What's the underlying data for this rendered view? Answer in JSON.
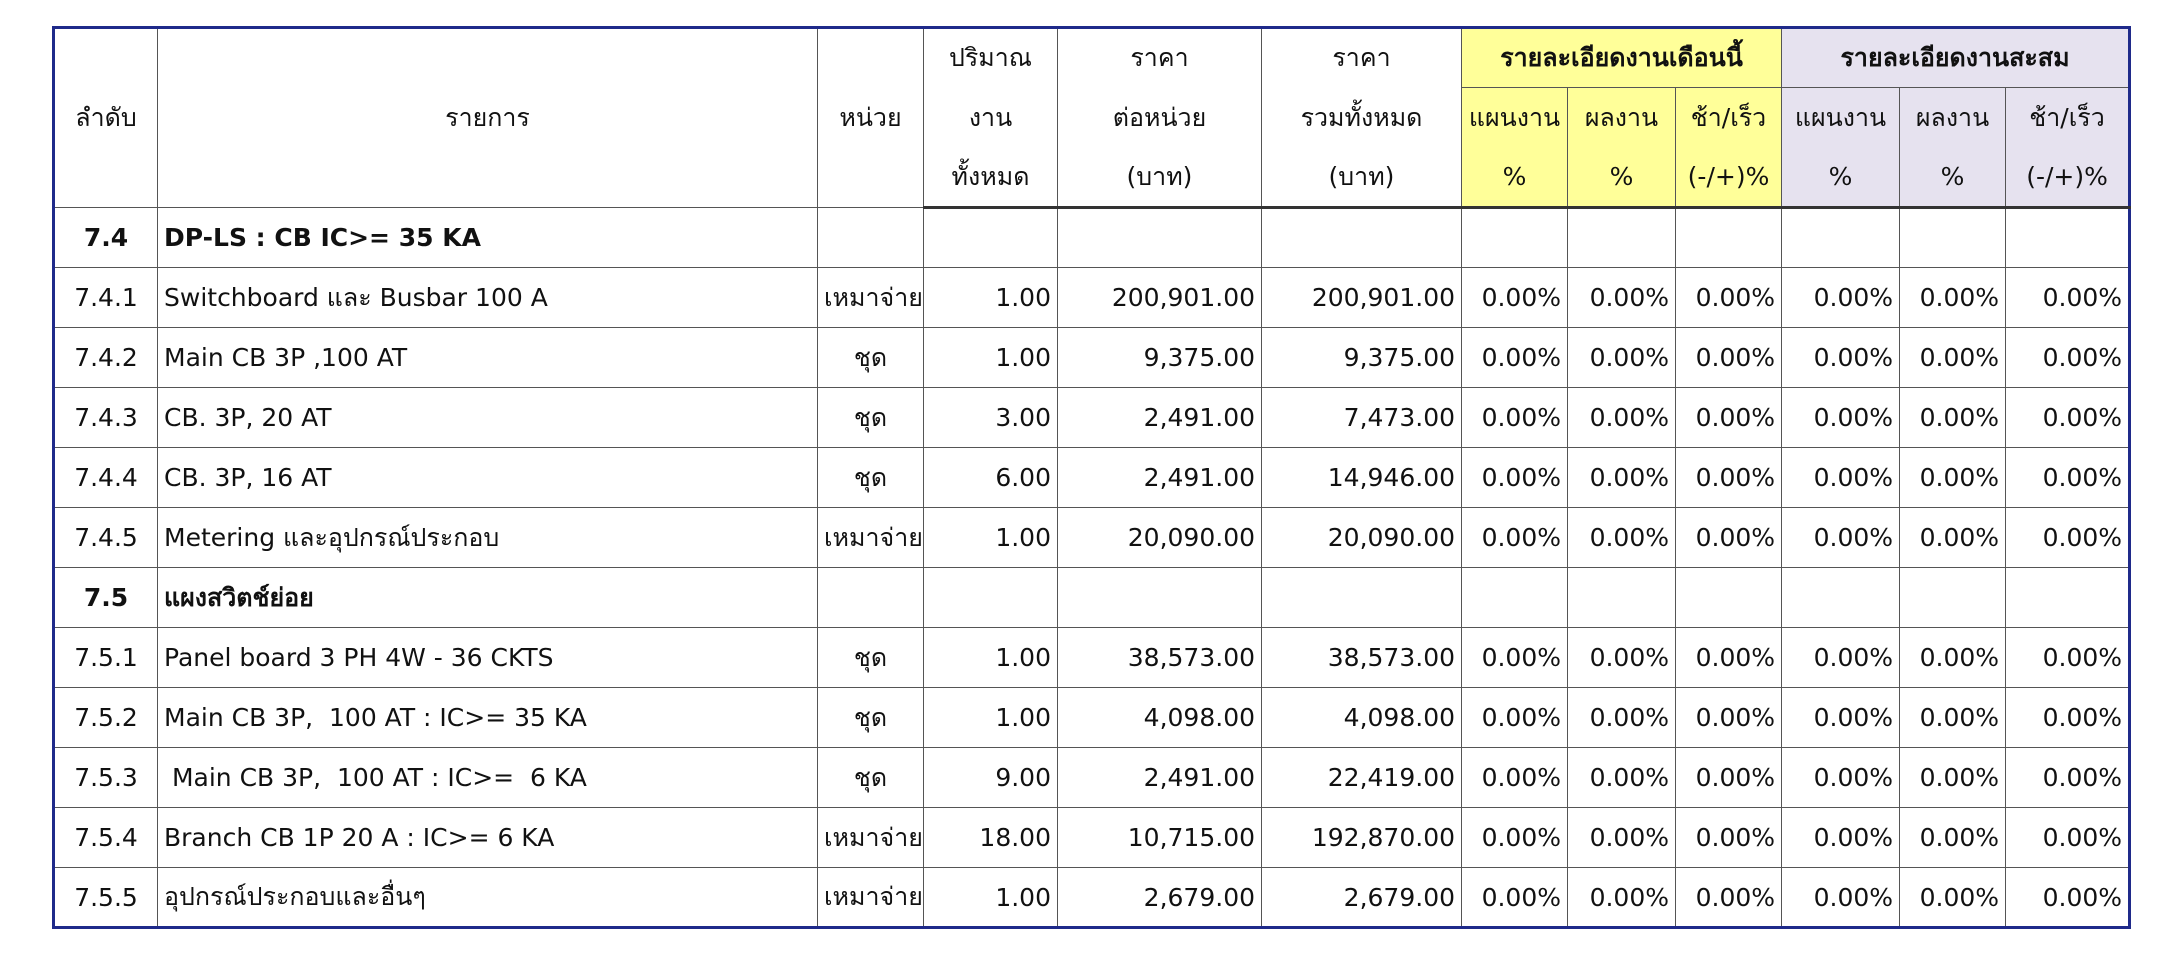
{
  "header": {
    "col_no": "ลำดับ",
    "col_item": "รายการ",
    "col_unit": "หน่วย",
    "col_qty": [
      "ปริมาณ",
      "งาน",
      "ทั้งหมด"
    ],
    "col_unit_price": [
      "ราคา",
      "ต่อหน่วย",
      "(บาท)"
    ],
    "col_total_price": [
      "ราคา",
      "รวมทั้งหมด",
      "(บาท)"
    ],
    "group_month": "รายละเอียดงานเดือนนี้",
    "group_cum": "รายละเอียดงานสะสม",
    "sub_plan": [
      "แผนงาน",
      "%"
    ],
    "sub_result": [
      "ผลงาน",
      "%"
    ],
    "sub_diff": [
      "ช้า/เร็ว",
      "(-/+)%"
    ]
  },
  "rows": [
    {
      "no": "7.4",
      "item": "DP-LS : CB IC>= 35 KA",
      "section": true
    },
    {
      "no": "7.4.1",
      "item": "Switchboard และ Busbar 100 A",
      "unit": "เหมาจ่าย",
      "qty": "1.00",
      "unit_price": "200,901.00",
      "total": "200,901.00",
      "p1": "0.00%",
      "p2": "0.00%",
      "p3": "0.00%",
      "p4": "0.00%",
      "p5": "0.00%",
      "p6": "0.00%"
    },
    {
      "no": "7.4.2",
      "item": "Main CB 3P ,100 AT",
      "unit": "ชุด",
      "qty": "1.00",
      "unit_price": "9,375.00",
      "total": "9,375.00",
      "p1": "0.00%",
      "p2": "0.00%",
      "p3": "0.00%",
      "p4": "0.00%",
      "p5": "0.00%",
      "p6": "0.00%"
    },
    {
      "no": "7.4.3",
      "item": "CB. 3P, 20 AT",
      "unit": "ชุด",
      "qty": "3.00",
      "unit_price": "2,491.00",
      "total": "7,473.00",
      "p1": "0.00%",
      "p2": "0.00%",
      "p3": "0.00%",
      "p4": "0.00%",
      "p5": "0.00%",
      "p6": "0.00%"
    },
    {
      "no": "7.4.4",
      "item": "CB. 3P, 16 AT",
      "unit": "ชุด",
      "qty": "6.00",
      "unit_price": "2,491.00",
      "total": "14,946.00",
      "p1": "0.00%",
      "p2": "0.00%",
      "p3": "0.00%",
      "p4": "0.00%",
      "p5": "0.00%",
      "p6": "0.00%"
    },
    {
      "no": "7.4.5",
      "item": "Metering และอุปกรณ์ประกอบ",
      "unit": "เหมาจ่าย",
      "qty": "1.00",
      "unit_price": "20,090.00",
      "total": "20,090.00",
      "p1": "0.00%",
      "p2": "0.00%",
      "p3": "0.00%",
      "p4": "0.00%",
      "p5": "0.00%",
      "p6": "0.00%"
    },
    {
      "no": "7.5",
      "item": "แผงสวิตช์ย่อย",
      "section": true
    },
    {
      "no": "7.5.1",
      "item": "Panel board 3 PH 4W - 36 CKTS",
      "unit": "ชุด",
      "qty": "1.00",
      "unit_price": "38,573.00",
      "total": "38,573.00",
      "p1": "0.00%",
      "p2": "0.00%",
      "p3": "0.00%",
      "p4": "0.00%",
      "p5": "0.00%",
      "p6": "0.00%"
    },
    {
      "no": "7.5.2",
      "item": "Main CB 3P,  100 AT : IC>= 35 KA",
      "unit": "ชุด",
      "qty": "1.00",
      "unit_price": "4,098.00",
      "total": "4,098.00",
      "p1": "0.00%",
      "p2": "0.00%",
      "p3": "0.00%",
      "p4": "0.00%",
      "p5": "0.00%",
      "p6": "0.00%"
    },
    {
      "no": "7.5.3",
      "item": " Main CB 3P,  100 AT : IC>=  6 KA",
      "unit": "ชุด",
      "qty": "9.00",
      "unit_price": "2,491.00",
      "total": "22,419.00",
      "p1": "0.00%",
      "p2": "0.00%",
      "p3": "0.00%",
      "p4": "0.00%",
      "p5": "0.00%",
      "p6": "0.00%"
    },
    {
      "no": "7.5.4",
      "item": "Branch CB 1P 20 A : IC>= 6 KA",
      "unit": "เหมาจ่าย",
      "qty": "18.00",
      "unit_price": "10,715.00",
      "total": "192,870.00",
      "p1": "0.00%",
      "p2": "0.00%",
      "p3": "0.00%",
      "p4": "0.00%",
      "p5": "0.00%",
      "p6": "0.00%"
    },
    {
      "no": "7.5.5",
      "item": "อุปกรณ์ประกอบและอื่นๆ",
      "unit": "เหมาจ่าย",
      "qty": "1.00",
      "unit_price": "2,679.00",
      "total": "2,679.00",
      "p1": "0.00%",
      "p2": "0.00%",
      "p3": "0.00%",
      "p4": "0.00%",
      "p5": "0.00%",
      "p6": "0.00%"
    }
  ]
}
